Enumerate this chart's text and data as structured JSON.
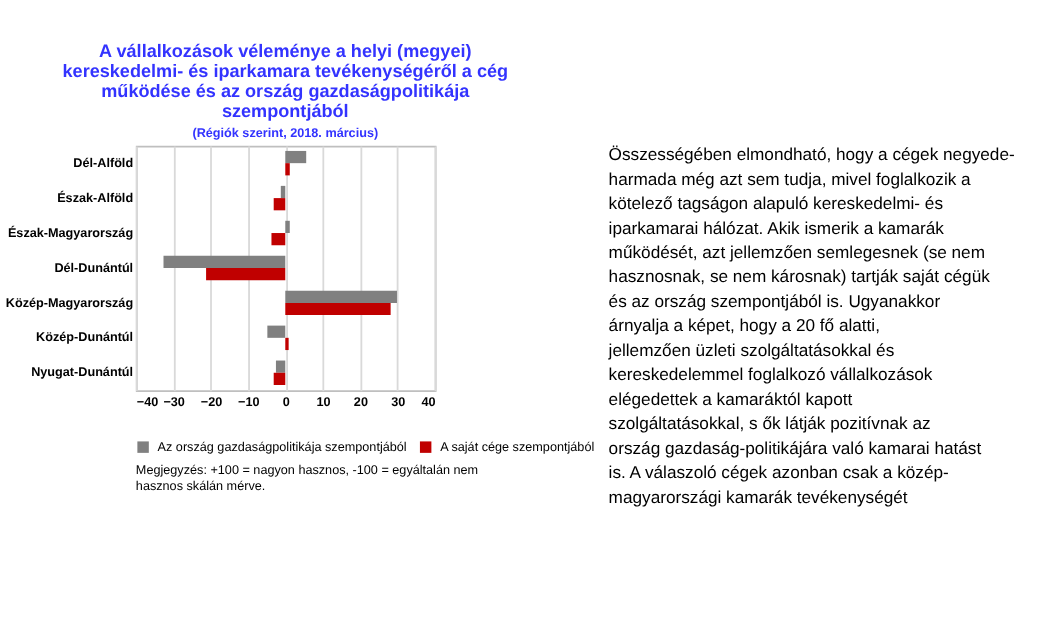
{
  "chart_data": {
    "type": "bar",
    "orientation": "horizontal",
    "title": "A vállalkozások véleménye a helyi (megyei) kereskedelmi- és iparkamara tevékenységéről a cég működése és az ország gazdaságpolitikája szempontjából",
    "subtitle": "(Régiók szerint, 2018. március)",
    "categories": [
      "Dél-Alföld",
      "Észak-Alföld",
      "Észak-Magyarország",
      "Dél-Dunántúl",
      "Közép-Magyarország",
      "Közép-Dunántúl",
      "Nyugat-Dunántúl"
    ],
    "series": [
      {
        "name": "Az ország gazdaságpolitikája szempontjából",
        "color": "#808080",
        "values": [
          5.6,
          -1.2,
          1.2,
          -32.6,
          29.9,
          -4.8,
          -2.5
        ]
      },
      {
        "name": "A saját cége szempontjából",
        "color": "#c00000",
        "values": [
          1.2,
          -3.1,
          -3.7,
          -21.2,
          28.2,
          0.9,
          -3.1
        ]
      }
    ],
    "xlim": [
      -40,
      40
    ],
    "xticks": [
      -40,
      -30,
      -20,
      -10,
      0,
      10,
      20,
      30,
      40
    ],
    "grid": "x",
    "legend": "bottom",
    "annotations": [
      "Megjegyzés: +100 = nagyon hasznos, -100 = egyáltalán nem hasznos skálán mérve.",
      "Összességében elmondható, hogy a cégek negyede-harmada még azt sem tudja, mivel foglalkozik a kötelező tagságon alapuló kereskedelmi- és iparkamarai hálózat. Akik ismerik a kamarák működését, azt jellemzően semlegesnek (se nem hasznosnak, se nem károsnak) tartják saját cégük és az ország szempontjából is. Ugyanakkor árnyalja a képet, hogy a 20 fő alatti, jellemzően üzleti szolgáltatásokkal és kereskedelemmel foglalkozó vállalkozások elégedettek a kamaráktól kapott szolgáltatásokkal, s ők látják pozitívnak az ország gazdaság-politikájára való kamarai hatást is. A válaszoló cégek azonban csak a közép- magyarországi kamarák tevékenységét"
    ]
  }
}
